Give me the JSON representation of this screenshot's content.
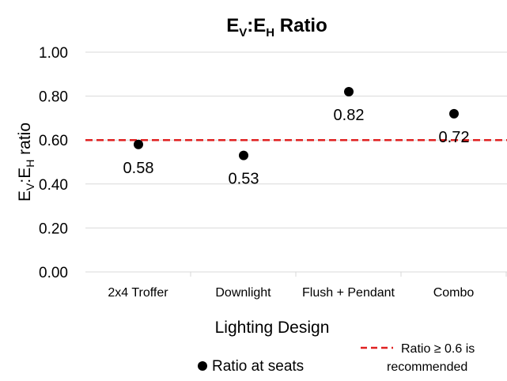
{
  "chart_data": {
    "type": "scatter",
    "title": {
      "main_1": "E",
      "sub_1": "V",
      "main_2": ":E",
      "sub_2": "H",
      "main_3": " Ratio"
    },
    "xlabel": "Lighting Design",
    "ylabel": {
      "main_1": "E",
      "sub_1": "V",
      "main_2": ":E",
      "sub_2": "H",
      "main_3": " ratio"
    },
    "categories": [
      "2x4 Troffer",
      "Downlight",
      "Flush + Pendant",
      "Combo"
    ],
    "ylim": [
      0,
      1.0
    ],
    "yticks": [
      "0.00",
      "0.20",
      "0.40",
      "0.60",
      "0.80",
      "1.00"
    ],
    "grid": "horizontal",
    "series": [
      {
        "name": "Ratio at seats",
        "values": [
          0.58,
          0.53,
          0.82,
          0.72
        ],
        "labels": [
          "0.58",
          "0.53",
          "0.82",
          "0.72"
        ],
        "color": "#000000"
      }
    ],
    "reference_line": {
      "name": "Ratio ≥ 0.6 is recommended",
      "name_line1": "Ratio ≥ 0.6 is",
      "name_line2": "recommended",
      "value": 0.6,
      "color": "#e02020",
      "style": "dashed"
    },
    "legend_position": "bottom"
  }
}
